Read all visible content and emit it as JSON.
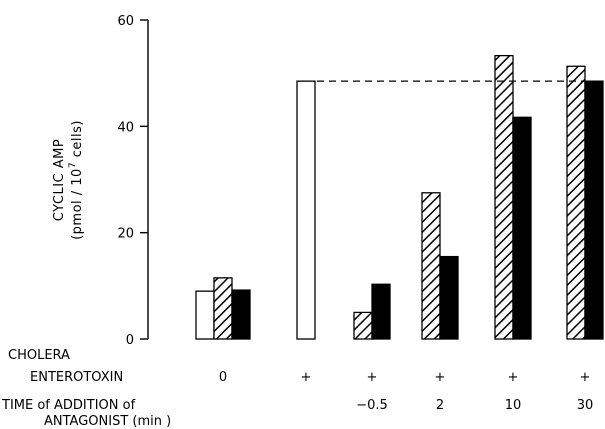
{
  "chart_data": {
    "type": "bar",
    "title": "",
    "ylabel_line1": "CYCLIC AMP",
    "ylabel_line2_prefix": "(pmol / 10",
    "ylabel_line2_sup": "7",
    "ylabel_line2_suffix": " cells)",
    "ylim": [
      0,
      60
    ],
    "yticks": [
      "0",
      "20",
      "40",
      "60"
    ],
    "grid": false,
    "legend": "none",
    "reference_line": {
      "style": "dashed",
      "value": 48.5
    },
    "row_labels": {
      "cholera_line1": "CHOLERA",
      "cholera_line2": "ENTEROTOXIN",
      "time_line1": "TIME of ADDITION of",
      "time_line2": "ANTAGONIST (min )"
    },
    "groups": [
      {
        "cholera": "0",
        "time": "",
        "bars": [
          {
            "style": "open",
            "value": 9
          },
          {
            "style": "hatched",
            "value": 11.5
          },
          {
            "style": "solid",
            "value": 9.2
          }
        ]
      },
      {
        "cholera": "+",
        "time": "",
        "bars": [
          {
            "style": "open",
            "value": 48.5
          }
        ]
      },
      {
        "cholera": "+",
        "time": "−0.5",
        "bars": [
          {
            "style": "hatched",
            "value": 5
          },
          {
            "style": "solid",
            "value": 10.3
          }
        ]
      },
      {
        "cholera": "+",
        "time": "2",
        "bars": [
          {
            "style": "hatched",
            "value": 27.5
          },
          {
            "style": "solid",
            "value": 15.5
          }
        ]
      },
      {
        "cholera": "+",
        "time": "10",
        "bars": [
          {
            "style": "hatched",
            "value": 53.3
          },
          {
            "style": "solid",
            "value": 41.7
          }
        ]
      },
      {
        "cholera": "+",
        "time": "30",
        "bars": [
          {
            "style": "hatched",
            "value": 51.3
          },
          {
            "style": "solid",
            "value": 48.5
          }
        ]
      }
    ]
  }
}
